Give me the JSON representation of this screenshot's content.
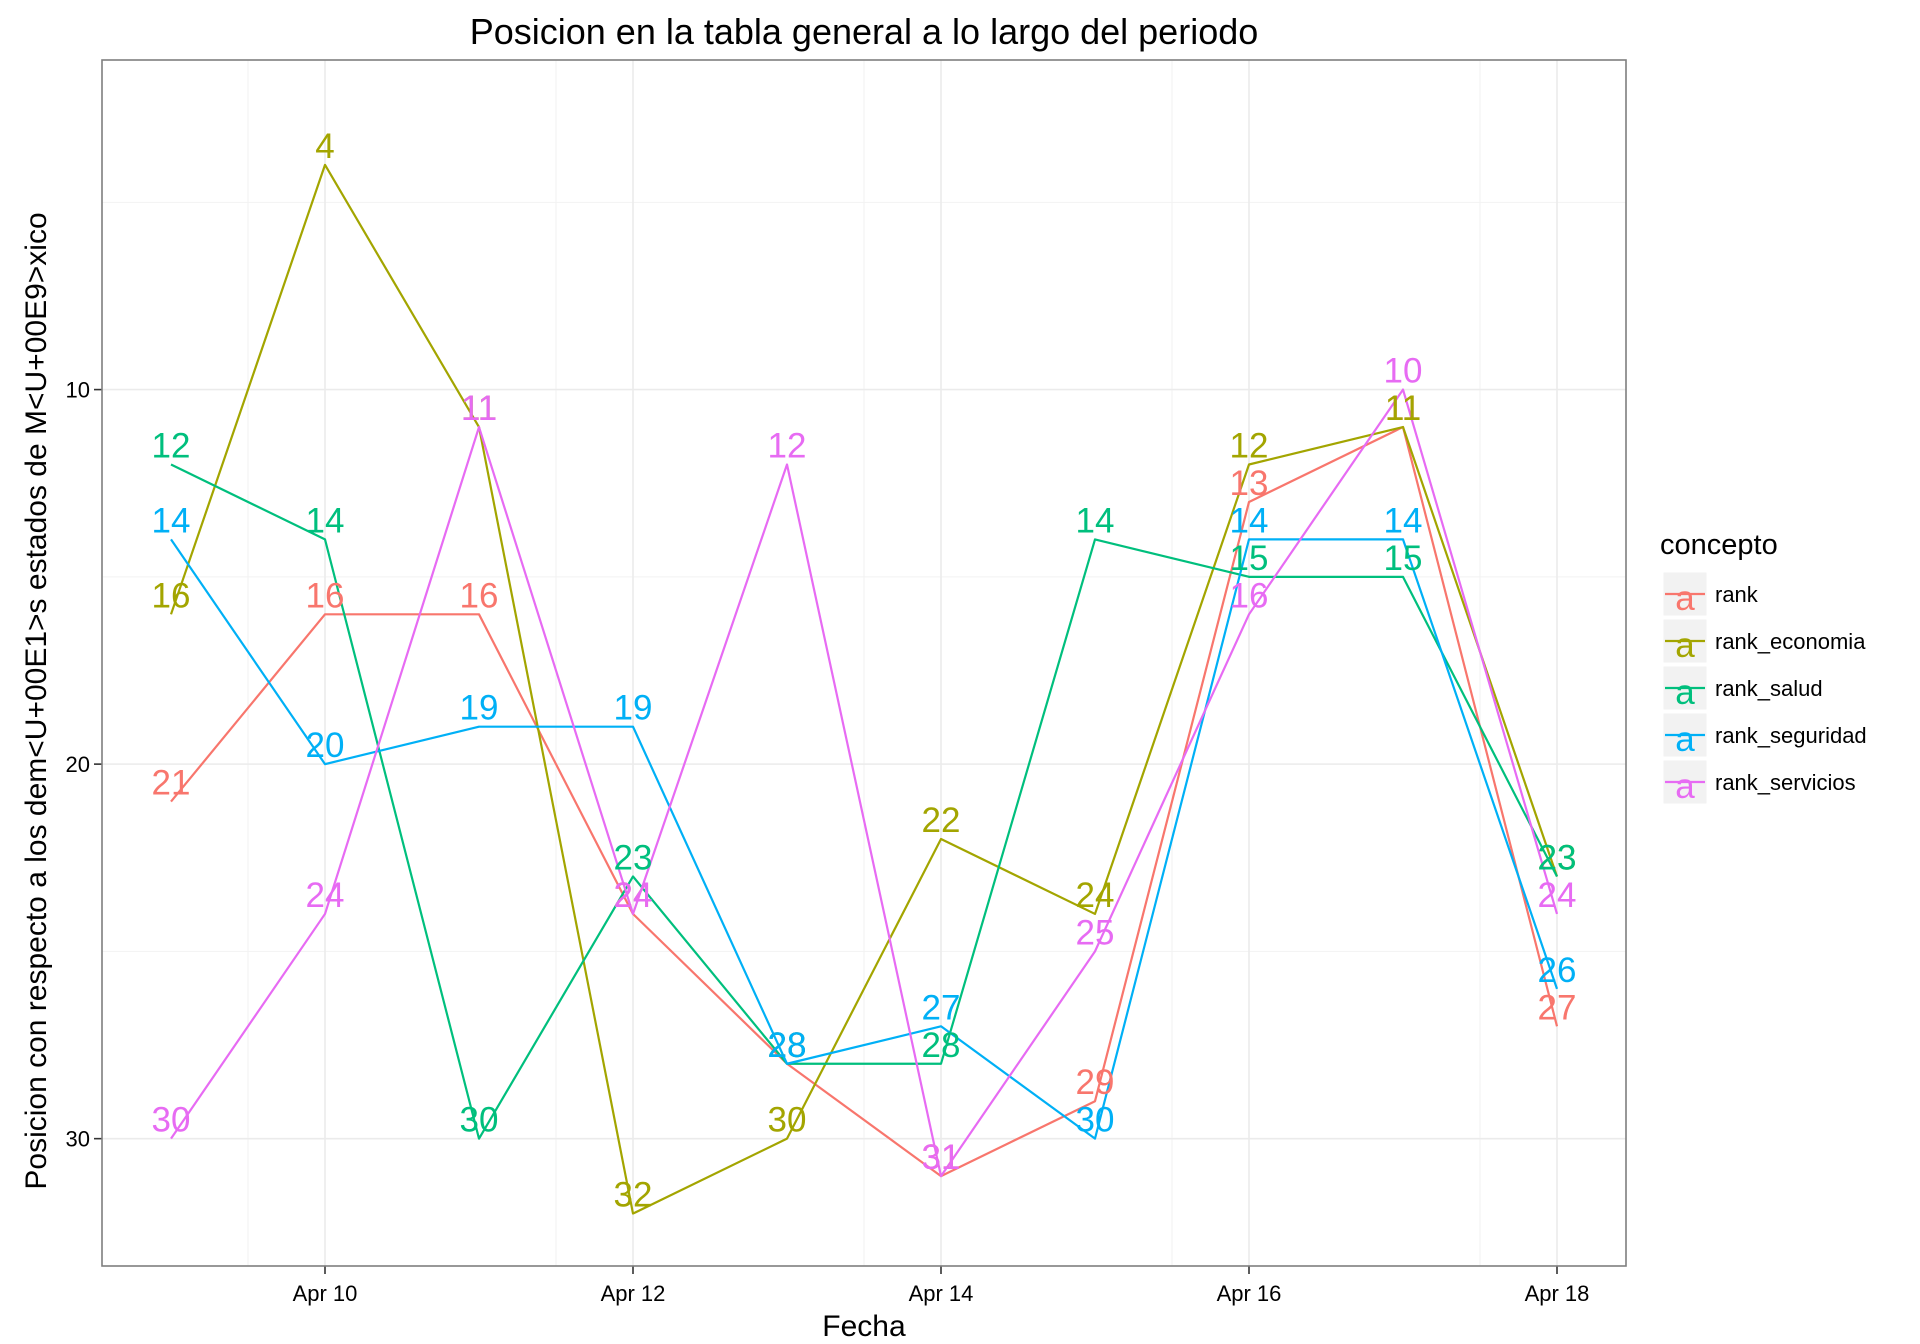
{
  "chart_data": {
    "type": "line",
    "title": "Posicion en la tabla general a lo largo del periodo",
    "xlabel": "Fecha",
    "ylabel": "Posicion con respecto a los dem<U+00E1>s estados de M<U+00E9>xico",
    "x": [
      "Apr 9",
      "Apr 10",
      "Apr 11",
      "Apr 12",
      "Apr 13",
      "Apr 14",
      "Apr 15",
      "Apr 16",
      "Apr 17",
      "Apr 18"
    ],
    "xticks": [
      "Apr 10",
      "Apr 12",
      "Apr 14",
      "Apr 16",
      "Apr 18"
    ],
    "yticks": [
      "10",
      "20",
      "30"
    ],
    "ylim": [
      1.2,
      33.4
    ],
    "y_reversed": true,
    "grid": true,
    "legend_position": "right",
    "legend_title": "concepto",
    "legend_key_glyph": "a",
    "series": [
      {
        "name": "rank",
        "color": "#F8766D",
        "values": [
          21,
          16,
          16,
          24,
          28,
          31,
          29,
          13,
          11,
          27
        ]
      },
      {
        "name": "rank_economia",
        "color": "#A3A500",
        "values": [
          16,
          4,
          11,
          32,
          30,
          22,
          24,
          12,
          11,
          23
        ]
      },
      {
        "name": "rank_salud",
        "color": "#00BF7D",
        "values": [
          12,
          14,
          30,
          23,
          28,
          28,
          14,
          15,
          15,
          23
        ]
      },
      {
        "name": "rank_seguridad",
        "color": "#00B0F6",
        "values": [
          14,
          20,
          19,
          19,
          28,
          27,
          30,
          14,
          14,
          26
        ]
      },
      {
        "name": "rank_servicios",
        "color": "#E76BF3",
        "values": [
          30,
          24,
          11,
          24,
          12,
          31,
          25,
          16,
          10,
          24
        ]
      }
    ]
  }
}
